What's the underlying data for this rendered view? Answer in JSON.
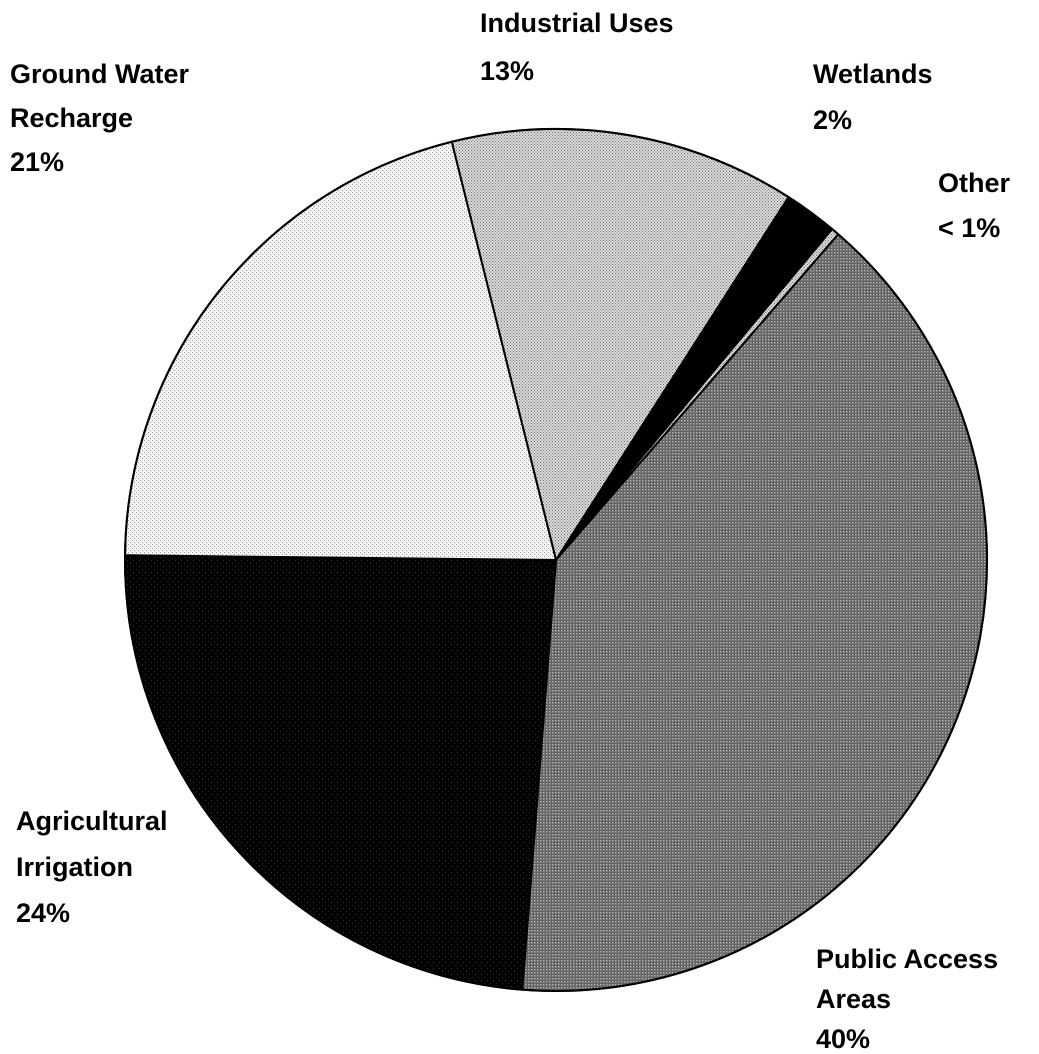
{
  "chart_data": {
    "type": "pie",
    "title": "",
    "slices": [
      {
        "label_lines": [
          "Industrial Uses"
        ],
        "value_label": "13%",
        "value": 13,
        "fill": "#c4c4c4",
        "pattern": "dots-medium"
      },
      {
        "label_lines": [
          "Wetlands"
        ],
        "value_label": "2%",
        "value": 2,
        "fill": "#000000",
        "pattern": "solid"
      },
      {
        "label_lines": [
          "Other"
        ],
        "value_label": "< 1%",
        "value": 0.3,
        "fill": "#cccccc",
        "pattern": "dots-medium"
      },
      {
        "label_lines": [
          "Public Access",
          "Areas"
        ],
        "value_label": "40%",
        "value": 40,
        "fill": "#7a7a7a",
        "pattern": "dots-dark"
      },
      {
        "label_lines": [
          "Agricultural",
          "Irrigation"
        ],
        "value_label": "24%",
        "value": 24,
        "fill": "#000000",
        "pattern": "dots-black"
      },
      {
        "label_lines": [
          "Ground Water",
          "Recharge"
        ],
        "value_label": "21%",
        "value": 21,
        "fill": "#e6e6e6",
        "pattern": "dots-light"
      }
    ],
    "legend": "none",
    "label_placement": "outside"
  }
}
